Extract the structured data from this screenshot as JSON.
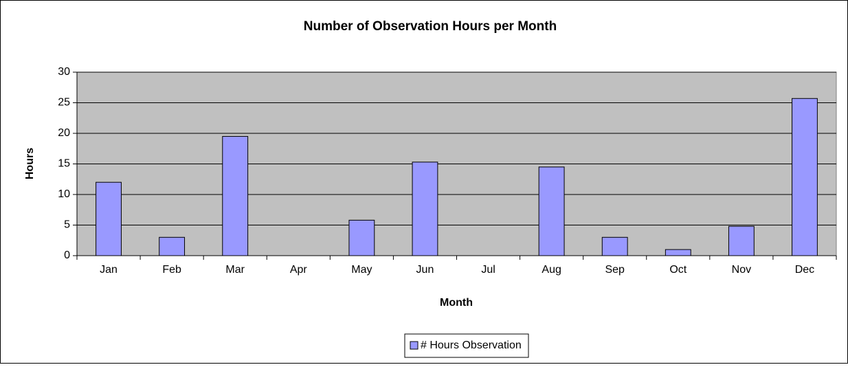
{
  "chart_data": {
    "type": "bar",
    "title": "Number of Observation Hours per Month",
    "x_label": "Month",
    "y_label": "Hours",
    "categories": [
      "Jan",
      "Feb",
      "Mar",
      "Apr",
      "May",
      "Jun",
      "Jul",
      "Aug",
      "Sep",
      "Oct",
      "Nov",
      "Dec"
    ],
    "series": [
      {
        "name": "# Hours Observation",
        "color": "#9999ff",
        "values": [
          12,
          3,
          19.5,
          0,
          5.8,
          15.3,
          0,
          14.5,
          3,
          1,
          4.8,
          25.7
        ]
      }
    ],
    "ylim": [
      0,
      30
    ],
    "yticks": [
      0,
      5,
      10,
      15,
      20,
      25,
      30
    ],
    "grid": true,
    "legend": "bottom"
  }
}
